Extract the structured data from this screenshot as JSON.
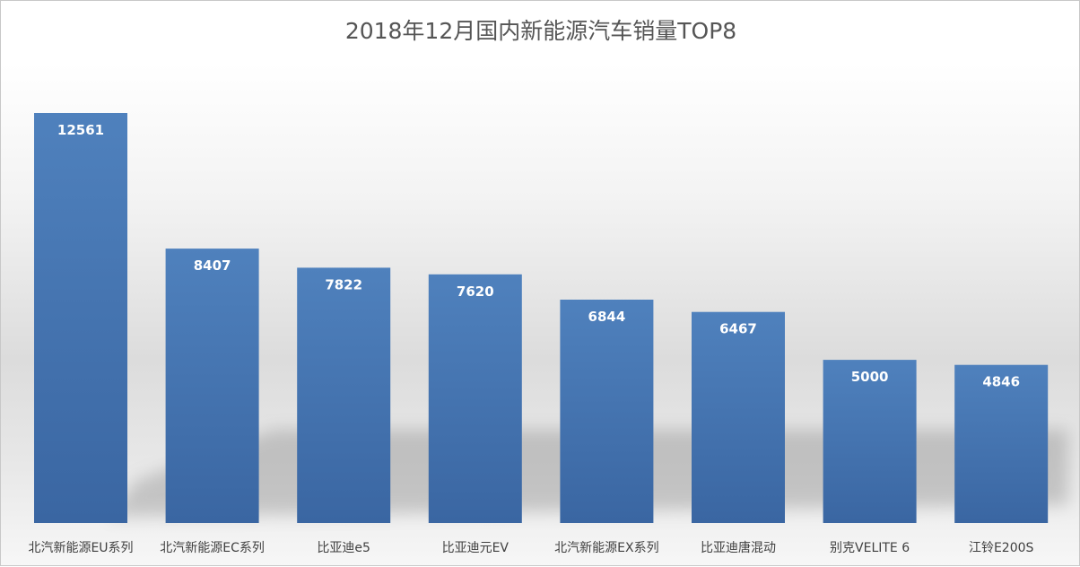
{
  "chart_data": {
    "type": "bar",
    "title": "2018年12月国内新能源汽车销量TOP8",
    "xlabel": "",
    "ylabel": "",
    "categories": [
      "北汽新能源EU系列",
      "北汽新能源EC系列",
      "比亚迪e5",
      "比亚迪元EV",
      "北汽新能源EX系列",
      "比亚迪唐混动",
      "别克VELITE 6",
      "江铃E200S"
    ],
    "values": [
      12561,
      8407,
      7822,
      7620,
      6844,
      6467,
      5000,
      4846
    ],
    "ylim": [
      0,
      12561
    ],
    "grid": false,
    "legend": "none",
    "data_labels": "inside-top",
    "colors": {
      "bar_top": "#4f81bd",
      "bar_bottom": "#3a66a2",
      "label": "#ffffff",
      "title": "#555555",
      "tick": "#404040"
    }
  }
}
